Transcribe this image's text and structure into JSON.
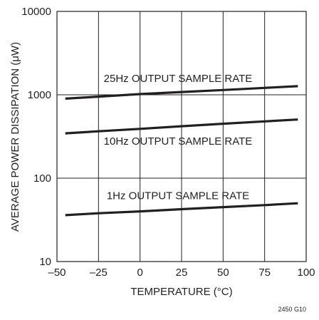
{
  "chart_data": {
    "type": "line",
    "xlabel": "TEMPERATURE (°C)",
    "ylabel": "AVERAGE POWER DISSIPATION (μW)",
    "xlim": [
      -50,
      100
    ],
    "ylim": [
      10,
      10000
    ],
    "yscale": "log",
    "grid": true,
    "x_ticks": [
      -50,
      -25,
      0,
      25,
      50,
      75,
      100
    ],
    "x_tick_labels": [
      "–50",
      "–25",
      "0",
      "25",
      "50",
      "75",
      "100"
    ],
    "y_ticks": [
      10,
      100,
      1000,
      10000
    ],
    "y_tick_labels": [
      "10",
      "100",
      "1000",
      "10000"
    ],
    "series": [
      {
        "name": "25Hz OUTPUT SAMPLE RATE",
        "x": [
          -45,
          -25,
          0,
          25,
          50,
          75,
          95
        ],
        "y": [
          900,
          950,
          1020,
          1080,
          1140,
          1210,
          1270
        ]
      },
      {
        "name": "10Hz OUTPUT SAMPLE RATE",
        "x": [
          -45,
          -25,
          0,
          25,
          50,
          75,
          95
        ],
        "y": [
          345,
          365,
          390,
          420,
          450,
          480,
          505
        ]
      },
      {
        "name": "1Hz OUTPUT SAMPLE RATE",
        "x": [
          -45,
          -25,
          0,
          25,
          50,
          75,
          95
        ],
        "y": [
          36,
          38,
          40,
          42.5,
          45,
          47.5,
          50
        ]
      }
    ],
    "figure_id": "2450 G10"
  }
}
